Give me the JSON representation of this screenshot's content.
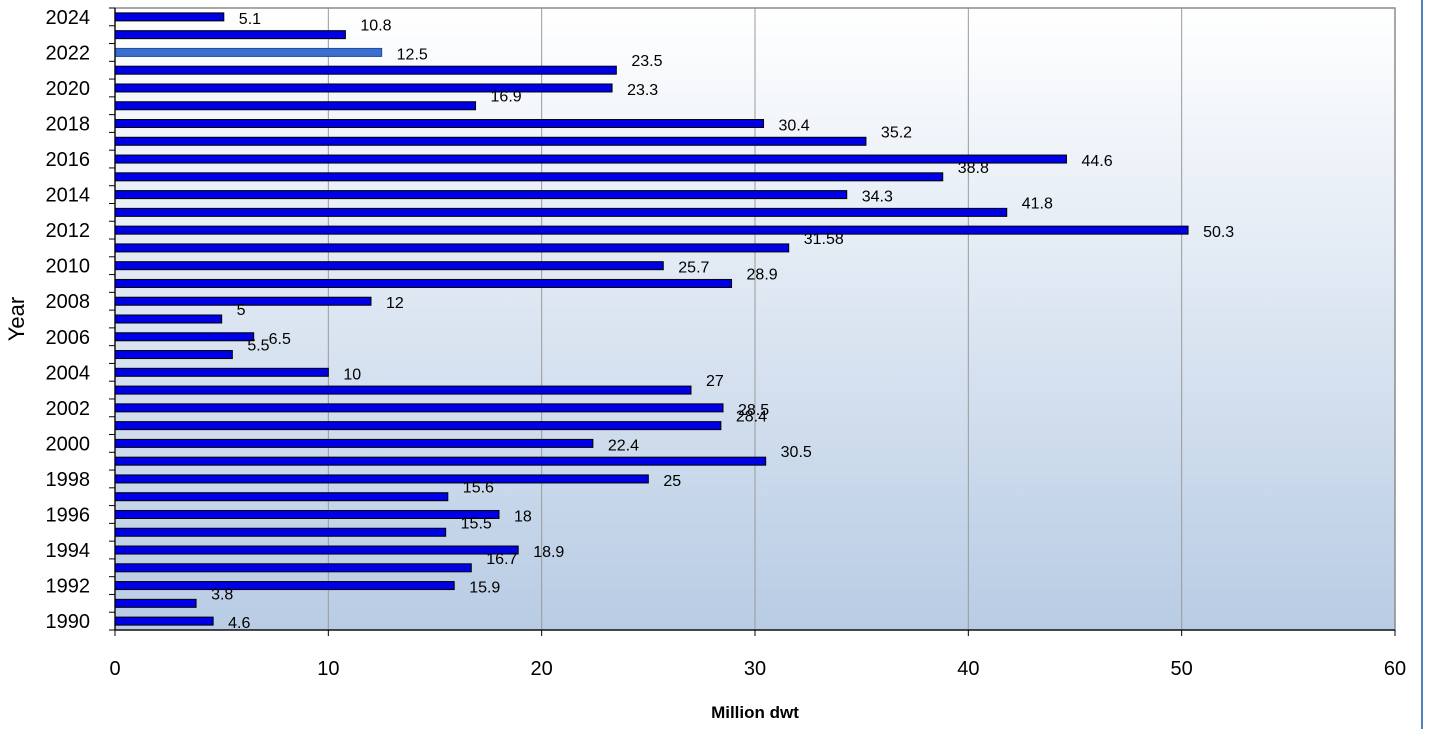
{
  "chart_data": {
    "type": "bar",
    "orientation": "horizontal",
    "title": "",
    "xlabel": "Million dwt",
    "ylabel": "Year",
    "xlim": [
      0,
      60
    ],
    "x_ticks": [
      "0",
      "10",
      "20",
      "30",
      "40",
      "50",
      "60"
    ],
    "y_tick_labels": [
      "1990",
      "1992",
      "1994",
      "1996",
      "1998",
      "2000",
      "2002",
      "2004",
      "2006",
      "2008",
      "2010",
      "2012",
      "2014",
      "2016",
      "2018",
      "2020",
      "2022",
      "2024"
    ],
    "grid": "vertical major gridlines",
    "legend": "none",
    "categories": [
      "1990",
      "1991",
      "1992",
      "1993",
      "1994",
      "1995",
      "1996",
      "1997",
      "1998",
      "1999",
      "2000",
      "2001",
      "2002",
      "2003",
      "2004",
      "2005",
      "2006",
      "2007",
      "2008",
      "2009",
      "2010",
      "2011",
      "2012",
      "2013",
      "2014",
      "2015",
      "2016",
      "2017",
      "2018",
      "2019",
      "2020",
      "2021",
      "2022",
      "2023",
      "2024"
    ],
    "values": [
      4.6,
      3.8,
      15.9,
      16.7,
      18.9,
      15.5,
      18,
      15.6,
      25,
      30.5,
      22.4,
      28.4,
      28.5,
      27,
      10,
      5.5,
      6.5,
      5,
      12,
      28.9,
      25.7,
      31.58,
      50.3,
      41.8,
      34.3,
      38.8,
      44.6,
      35.2,
      30.4,
      16.9,
      23.3,
      23.5,
      12.5,
      10.8,
      5.1
    ],
    "data_labels": [
      "4.6",
      "3.8",
      "15.9",
      "16.7",
      "18.9",
      "15.5",
      "18",
      "15.6",
      "25",
      "30.5",
      "22.4",
      "28.4",
      "28.5",
      "27",
      "10",
      "5.5",
      "6.5",
      "5",
      "12",
      "28.9",
      "25.7",
      "31.58",
      "50.3",
      "41.8",
      "34.3",
      "38.8",
      "44.6",
      "35.2",
      "30.4",
      "16.9",
      "23.3",
      "23.5",
      "12.5",
      "10.8",
      "5.1"
    ],
    "highlighted_category": "2022",
    "colors": {
      "bar_fill": "#0000e6",
      "bar_stroke": "#000000",
      "highlight_fill": "#3a6fd0",
      "plot_bg_top": "#ffffff",
      "plot_bg_bottom": "#b8cce4",
      "gridline": "#9a9a9a",
      "axis": "#000000",
      "frame": "#8c8c8c",
      "right_rule": "#4f81bd"
    }
  }
}
